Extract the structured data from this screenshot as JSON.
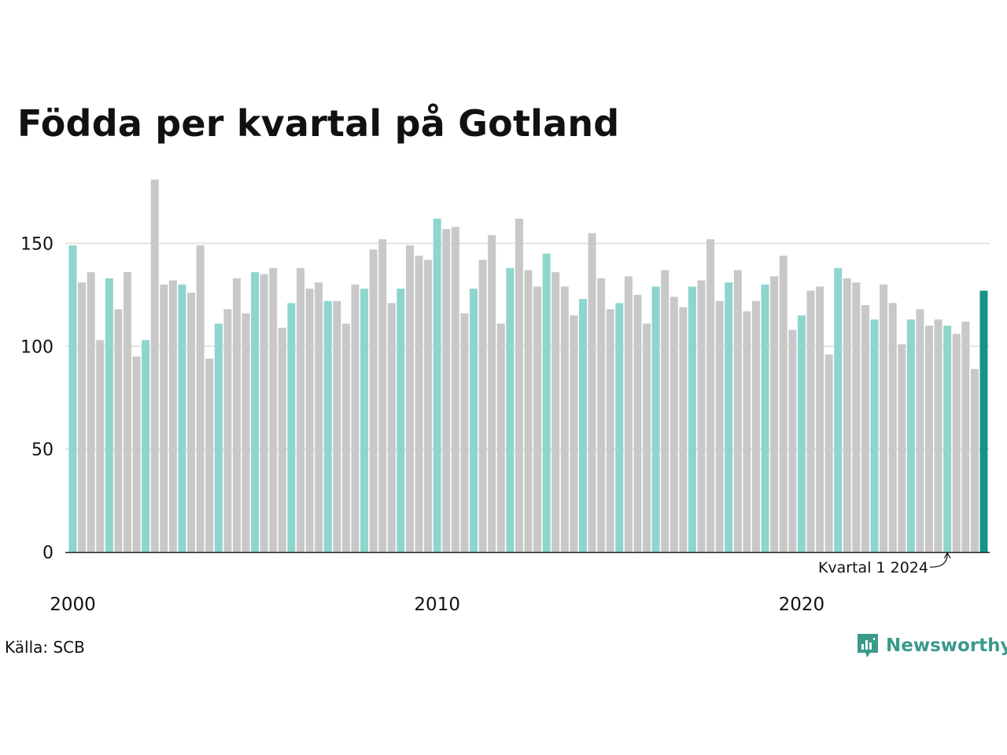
{
  "title": "Födda per kvartal på Gotland",
  "source": "Källa: SCB",
  "brand": "Newsworthy",
  "colors": {
    "q1": "#8dd5cd",
    "other": "#c8c8c8",
    "latest": "#169384",
    "grid": "#e3e3e3",
    "axis": "#222222",
    "brand": "#3a9a8c"
  },
  "chart_data": {
    "type": "bar",
    "title": "Födda per kvartal på Gotland",
    "xlabel": "",
    "ylabel": "",
    "ylim": [
      0,
      180
    ],
    "yticks": [
      0,
      50,
      100,
      150
    ],
    "start_year": 2000,
    "xtick_labels": [
      "2000",
      "2010",
      "2020"
    ],
    "annotation": "Kvartal 1 2024",
    "grid": true,
    "categories": [
      "2000 K1",
      "2000 K2",
      "2000 K3",
      "2000 K4",
      "2001 K1",
      "2001 K2",
      "2001 K3",
      "2001 K4",
      "2002 K1",
      "2002 K2",
      "2002 K3",
      "2002 K4",
      "2003 K1",
      "2003 K2",
      "2003 K3",
      "2003 K4",
      "2004 K1",
      "2004 K2",
      "2004 K3",
      "2004 K4",
      "2005 K1",
      "2005 K2",
      "2005 K3",
      "2005 K4",
      "2006 K1",
      "2006 K2",
      "2006 K3",
      "2006 K4",
      "2007 K1",
      "2007 K2",
      "2007 K3",
      "2007 K4",
      "2008 K1",
      "2008 K2",
      "2008 K3",
      "2008 K4",
      "2009 K1",
      "2009 K2",
      "2009 K3",
      "2009 K4",
      "2010 K1",
      "2010 K2",
      "2010 K3",
      "2010 K4",
      "2011 K1",
      "2011 K2",
      "2011 K3",
      "2011 K4",
      "2012 K1",
      "2012 K2",
      "2012 K3",
      "2012 K4",
      "2013 K1",
      "2013 K2",
      "2013 K3",
      "2013 K4",
      "2014 K1",
      "2014 K2",
      "2014 K3",
      "2014 K4",
      "2015 K1",
      "2015 K2",
      "2015 K3",
      "2015 K4",
      "2016 K1",
      "2016 K2",
      "2016 K3",
      "2016 K4",
      "2017 K1",
      "2017 K2",
      "2017 K3",
      "2017 K4",
      "2018 K1",
      "2018 K2",
      "2018 K3",
      "2018 K4",
      "2019 K1",
      "2019 K2",
      "2019 K3",
      "2019 K4",
      "2020 K1",
      "2020 K2",
      "2020 K3",
      "2020 K4",
      "2021 K1",
      "2021 K2",
      "2021 K3",
      "2021 K4",
      "2022 K1",
      "2022 K2",
      "2022 K3",
      "2022 K4",
      "2023 K1",
      "2023 K2",
      "2023 K3",
      "2023 K4",
      "2024 K1",
      "2024 K2",
      "2024 K3",
      "2024 K4",
      "2025 K1"
    ],
    "values": [
      149,
      131,
      136,
      103,
      133,
      118,
      136,
      95,
      103,
      181,
      130,
      132,
      130,
      126,
      149,
      94,
      111,
      118,
      133,
      116,
      136,
      135,
      138,
      109,
      121,
      138,
      128,
      131,
      122,
      122,
      111,
      130,
      128,
      147,
      152,
      121,
      128,
      149,
      144,
      142,
      162,
      157,
      158,
      116,
      128,
      142,
      154,
      111,
      138,
      162,
      137,
      129,
      145,
      136,
      129,
      115,
      123,
      155,
      133,
      118,
      121,
      134,
      125,
      111,
      129,
      137,
      124,
      119,
      129,
      132,
      152,
      122,
      131,
      137,
      117,
      122,
      130,
      134,
      144,
      108,
      115,
      127,
      129,
      96,
      138,
      133,
      131,
      120,
      113,
      130,
      121,
      101,
      113,
      118,
      110,
      113,
      110,
      106,
      112,
      89,
      127
    ]
  }
}
